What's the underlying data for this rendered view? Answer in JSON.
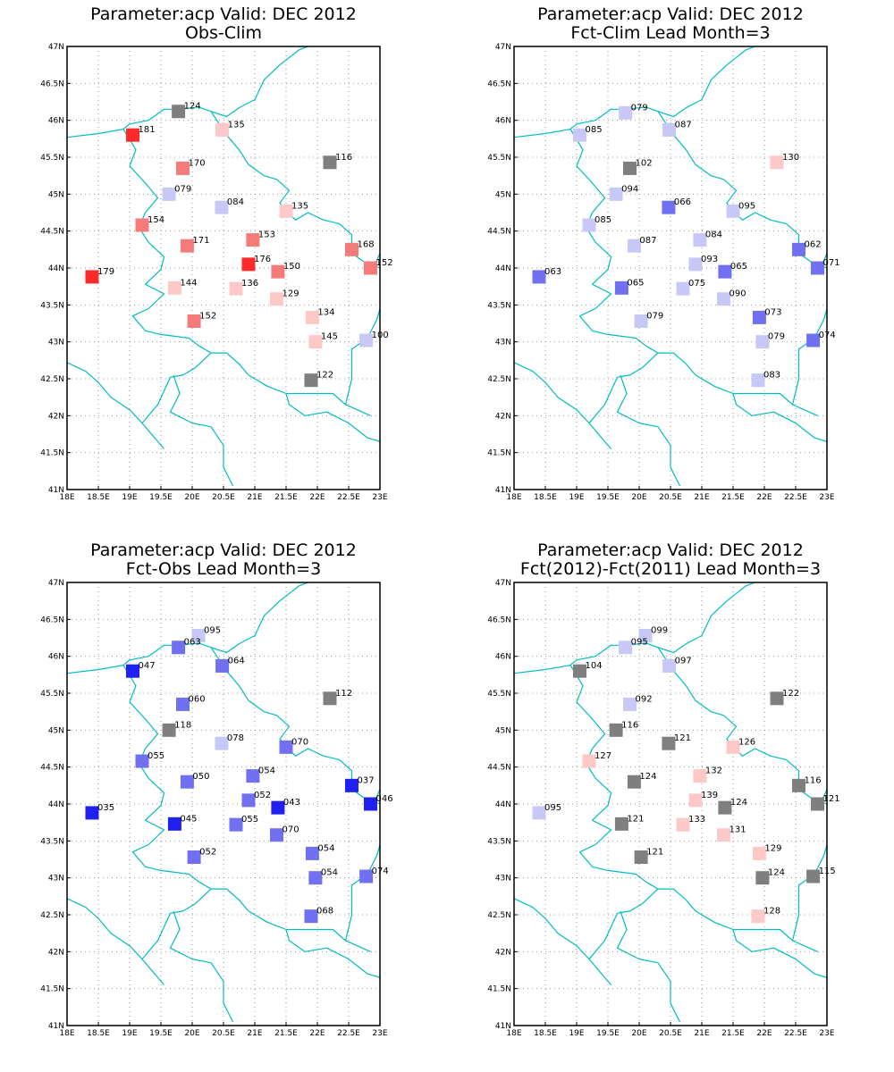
{
  "colors": {
    "border": "#00bcc0",
    "grid": "#9a9a9a",
    "strong_red": "#ff2b2b",
    "med_red": "#f57a7a",
    "light_red": "#fcc8c8",
    "gray": "#7f7f7f",
    "light_blue": "#c8c8f6",
    "med_blue": "#7070f0",
    "strong_blue": "#2020f0"
  },
  "x_tick_labels": [
    "18E",
    "18.5E",
    "19E",
    "19.5E",
    "20E",
    "20.5E",
    "21E",
    "21.5E",
    "22E",
    "22.5E",
    "23E"
  ],
  "y_tick_labels": [
    "41N",
    "41.5N",
    "42N",
    "42.5N",
    "43N",
    "43.5N",
    "44N",
    "44.5N",
    "45N",
    "45.5N",
    "46N",
    "46.5N",
    "47N"
  ],
  "chart_data": [
    {
      "type": "scatter",
      "title": "Parameter:acp Valid: DEC 2012",
      "subtitle": "Obs-Clim",
      "xlim": [
        18,
        23
      ],
      "ylim": [
        41,
        47
      ],
      "stations": [
        {
          "lon": 19.78,
          "lat": 46.12,
          "label": "124",
          "color": "gray"
        },
        {
          "lon": 20.48,
          "lat": 45.87,
          "label": "135",
          "color": "light_red"
        },
        {
          "lon": 19.05,
          "lat": 45.8,
          "label": "181",
          "color": "strong_red"
        },
        {
          "lon": 22.2,
          "lat": 45.43,
          "label": "116",
          "color": "gray"
        },
        {
          "lon": 19.85,
          "lat": 45.35,
          "label": "170",
          "color": "med_red"
        },
        {
          "lon": 19.63,
          "lat": 45.0,
          "label": "079",
          "color": "light_blue"
        },
        {
          "lon": 20.47,
          "lat": 44.82,
          "label": "084",
          "color": "light_blue"
        },
        {
          "lon": 21.5,
          "lat": 44.77,
          "label": "135",
          "color": "light_red"
        },
        {
          "lon": 19.2,
          "lat": 44.58,
          "label": "154",
          "color": "med_red"
        },
        {
          "lon": 19.92,
          "lat": 44.3,
          "label": "171",
          "color": "med_red"
        },
        {
          "lon": 20.97,
          "lat": 44.38,
          "label": "153",
          "color": "med_red"
        },
        {
          "lon": 22.55,
          "lat": 44.25,
          "label": "168",
          "color": "med_red"
        },
        {
          "lon": 18.4,
          "lat": 43.88,
          "label": "179",
          "color": "strong_red"
        },
        {
          "lon": 20.9,
          "lat": 44.05,
          "label": "176",
          "color": "strong_red"
        },
        {
          "lon": 21.37,
          "lat": 43.95,
          "label": "150",
          "color": "med_red"
        },
        {
          "lon": 22.85,
          "lat": 44.0,
          "label": "152",
          "color": "med_red"
        },
        {
          "lon": 19.72,
          "lat": 43.73,
          "label": "144",
          "color": "light_red"
        },
        {
          "lon": 20.7,
          "lat": 43.72,
          "label": "136",
          "color": "light_red"
        },
        {
          "lon": 21.35,
          "lat": 43.58,
          "label": "129",
          "color": "light_red"
        },
        {
          "lon": 21.92,
          "lat": 43.33,
          "label": "134",
          "color": "light_red"
        },
        {
          "lon": 20.03,
          "lat": 43.28,
          "label": "152",
          "color": "med_red"
        },
        {
          "lon": 21.97,
          "lat": 43.0,
          "label": "145",
          "color": "light_red"
        },
        {
          "lon": 22.78,
          "lat": 43.02,
          "label": "100",
          "color": "light_blue"
        },
        {
          "lon": 21.9,
          "lat": 42.48,
          "label": "122",
          "color": "gray"
        }
      ]
    },
    {
      "type": "scatter",
      "title": "Parameter:acp Valid: DEC 2012",
      "subtitle": "Fct-Clim Lead Month=3",
      "xlim": [
        18,
        23
      ],
      "ylim": [
        41,
        47
      ],
      "stations": [
        {
          "lon": 19.78,
          "lat": 46.1,
          "label": "079",
          "color": "light_blue"
        },
        {
          "lon": 19.05,
          "lat": 45.8,
          "label": "085",
          "color": "light_blue"
        },
        {
          "lon": 20.48,
          "lat": 45.87,
          "label": "087",
          "color": "light_blue"
        },
        {
          "lon": 19.85,
          "lat": 45.35,
          "label": "102",
          "color": "gray"
        },
        {
          "lon": 22.2,
          "lat": 45.43,
          "label": "130",
          "color": "light_red"
        },
        {
          "lon": 19.63,
          "lat": 45.0,
          "label": "094",
          "color": "light_blue"
        },
        {
          "lon": 20.47,
          "lat": 44.82,
          "label": "066",
          "color": "med_blue"
        },
        {
          "lon": 21.5,
          "lat": 44.77,
          "label": "095",
          "color": "light_blue"
        },
        {
          "lon": 19.2,
          "lat": 44.58,
          "label": "085",
          "color": "light_blue"
        },
        {
          "lon": 19.92,
          "lat": 44.3,
          "label": "087",
          "color": "light_blue"
        },
        {
          "lon": 20.97,
          "lat": 44.38,
          "label": "084",
          "color": "light_blue"
        },
        {
          "lon": 22.55,
          "lat": 44.25,
          "label": "062",
          "color": "med_blue"
        },
        {
          "lon": 18.4,
          "lat": 43.88,
          "label": "063",
          "color": "med_blue"
        },
        {
          "lon": 20.9,
          "lat": 44.05,
          "label": "093",
          "color": "light_blue"
        },
        {
          "lon": 21.37,
          "lat": 43.95,
          "label": "065",
          "color": "med_blue"
        },
        {
          "lon": 22.85,
          "lat": 44.0,
          "label": "071",
          "color": "med_blue"
        },
        {
          "lon": 19.72,
          "lat": 43.73,
          "label": "065",
          "color": "med_blue"
        },
        {
          "lon": 20.7,
          "lat": 43.72,
          "label": "075",
          "color": "light_blue"
        },
        {
          "lon": 21.35,
          "lat": 43.58,
          "label": "090",
          "color": "light_blue"
        },
        {
          "lon": 21.92,
          "lat": 43.33,
          "label": "073",
          "color": "med_blue"
        },
        {
          "lon": 20.03,
          "lat": 43.28,
          "label": "079",
          "color": "light_blue"
        },
        {
          "lon": 21.97,
          "lat": 43.0,
          "label": "079",
          "color": "light_blue"
        },
        {
          "lon": 22.78,
          "lat": 43.02,
          "label": "074",
          "color": "med_blue"
        },
        {
          "lon": 21.9,
          "lat": 42.48,
          "label": "083",
          "color": "light_blue"
        }
      ]
    },
    {
      "type": "scatter",
      "title": "Parameter:acp Valid: DEC 2012",
      "subtitle": "Fct-Obs Lead Month=3",
      "xlim": [
        18,
        23
      ],
      "ylim": [
        41,
        47
      ],
      "stations": [
        {
          "lon": 20.1,
          "lat": 46.28,
          "label": "095",
          "color": "light_blue"
        },
        {
          "lon": 19.78,
          "lat": 46.12,
          "label": "063",
          "color": "med_blue"
        },
        {
          "lon": 19.05,
          "lat": 45.8,
          "label": "047",
          "color": "strong_blue"
        },
        {
          "lon": 20.48,
          "lat": 45.87,
          "label": "064",
          "color": "med_blue"
        },
        {
          "lon": 22.2,
          "lat": 45.43,
          "label": "112",
          "color": "gray"
        },
        {
          "lon": 19.85,
          "lat": 45.35,
          "label": "060",
          "color": "med_blue"
        },
        {
          "lon": 19.63,
          "lat": 45.0,
          "label": "118",
          "color": "gray"
        },
        {
          "lon": 20.47,
          "lat": 44.82,
          "label": "078",
          "color": "light_blue"
        },
        {
          "lon": 21.5,
          "lat": 44.77,
          "label": "070",
          "color": "med_blue"
        },
        {
          "lon": 19.2,
          "lat": 44.58,
          "label": "055",
          "color": "med_blue"
        },
        {
          "lon": 19.92,
          "lat": 44.3,
          "label": "050",
          "color": "med_blue"
        },
        {
          "lon": 20.97,
          "lat": 44.38,
          "label": "054",
          "color": "med_blue"
        },
        {
          "lon": 22.55,
          "lat": 44.25,
          "label": "037",
          "color": "strong_blue"
        },
        {
          "lon": 18.4,
          "lat": 43.88,
          "label": "035",
          "color": "strong_blue"
        },
        {
          "lon": 20.9,
          "lat": 44.05,
          "label": "052",
          "color": "med_blue"
        },
        {
          "lon": 21.37,
          "lat": 43.95,
          "label": "043",
          "color": "strong_blue"
        },
        {
          "lon": 22.85,
          "lat": 44.0,
          "label": "046",
          "color": "strong_blue"
        },
        {
          "lon": 19.72,
          "lat": 43.73,
          "label": "045",
          "color": "strong_blue"
        },
        {
          "lon": 20.7,
          "lat": 43.72,
          "label": "055",
          "color": "med_blue"
        },
        {
          "lon": 21.35,
          "lat": 43.58,
          "label": "070",
          "color": "med_blue"
        },
        {
          "lon": 21.92,
          "lat": 43.33,
          "label": "054",
          "color": "med_blue"
        },
        {
          "lon": 20.03,
          "lat": 43.28,
          "label": "052",
          "color": "med_blue"
        },
        {
          "lon": 21.97,
          "lat": 43.0,
          "label": "054",
          "color": "med_blue"
        },
        {
          "lon": 22.78,
          "lat": 43.02,
          "label": "074",
          "color": "med_blue"
        },
        {
          "lon": 21.9,
          "lat": 42.48,
          "label": "068",
          "color": "med_blue"
        }
      ]
    },
    {
      "type": "scatter",
      "title": "Parameter:acp Valid: DEC 2012",
      "subtitle": "Fct(2012)-Fct(2011) Lead Month=3",
      "xlim": [
        18,
        23
      ],
      "ylim": [
        41,
        47
      ],
      "stations": [
        {
          "lon": 20.1,
          "lat": 46.28,
          "label": "099",
          "color": "light_blue"
        },
        {
          "lon": 19.78,
          "lat": 46.12,
          "label": "095",
          "color": "light_blue"
        },
        {
          "lon": 19.05,
          "lat": 45.8,
          "label": "104",
          "color": "gray"
        },
        {
          "lon": 20.48,
          "lat": 45.87,
          "label": "097",
          "color": "light_blue"
        },
        {
          "lon": 22.2,
          "lat": 45.43,
          "label": "122",
          "color": "gray"
        },
        {
          "lon": 19.85,
          "lat": 45.35,
          "label": "092",
          "color": "light_blue"
        },
        {
          "lon": 19.63,
          "lat": 45.0,
          "label": "116",
          "color": "gray"
        },
        {
          "lon": 20.47,
          "lat": 44.82,
          "label": "121",
          "color": "gray"
        },
        {
          "lon": 21.5,
          "lat": 44.77,
          "label": "126",
          "color": "light_red"
        },
        {
          "lon": 19.2,
          "lat": 44.58,
          "label": "127",
          "color": "light_red"
        },
        {
          "lon": 19.92,
          "lat": 44.3,
          "label": "124",
          "color": "gray"
        },
        {
          "lon": 20.97,
          "lat": 44.38,
          "label": "132",
          "color": "light_red"
        },
        {
          "lon": 22.55,
          "lat": 44.25,
          "label": "116",
          "color": "gray"
        },
        {
          "lon": 18.4,
          "lat": 43.88,
          "label": "095",
          "color": "light_blue"
        },
        {
          "lon": 20.9,
          "lat": 44.05,
          "label": "139",
          "color": "light_red"
        },
        {
          "lon": 21.37,
          "lat": 43.95,
          "label": "124",
          "color": "gray"
        },
        {
          "lon": 22.85,
          "lat": 44.0,
          "label": "121",
          "color": "gray"
        },
        {
          "lon": 19.72,
          "lat": 43.73,
          "label": "121",
          "color": "gray"
        },
        {
          "lon": 20.7,
          "lat": 43.72,
          "label": "133",
          "color": "light_red"
        },
        {
          "lon": 21.35,
          "lat": 43.58,
          "label": "131",
          "color": "light_red"
        },
        {
          "lon": 21.92,
          "lat": 43.33,
          "label": "129",
          "color": "light_red"
        },
        {
          "lon": 20.03,
          "lat": 43.28,
          "label": "121",
          "color": "gray"
        },
        {
          "lon": 21.97,
          "lat": 43.0,
          "label": "124",
          "color": "gray"
        },
        {
          "lon": 22.78,
          "lat": 43.02,
          "label": "115",
          "color": "gray"
        },
        {
          "lon": 21.9,
          "lat": 42.48,
          "label": "128",
          "color": "light_red"
        }
      ]
    }
  ]
}
